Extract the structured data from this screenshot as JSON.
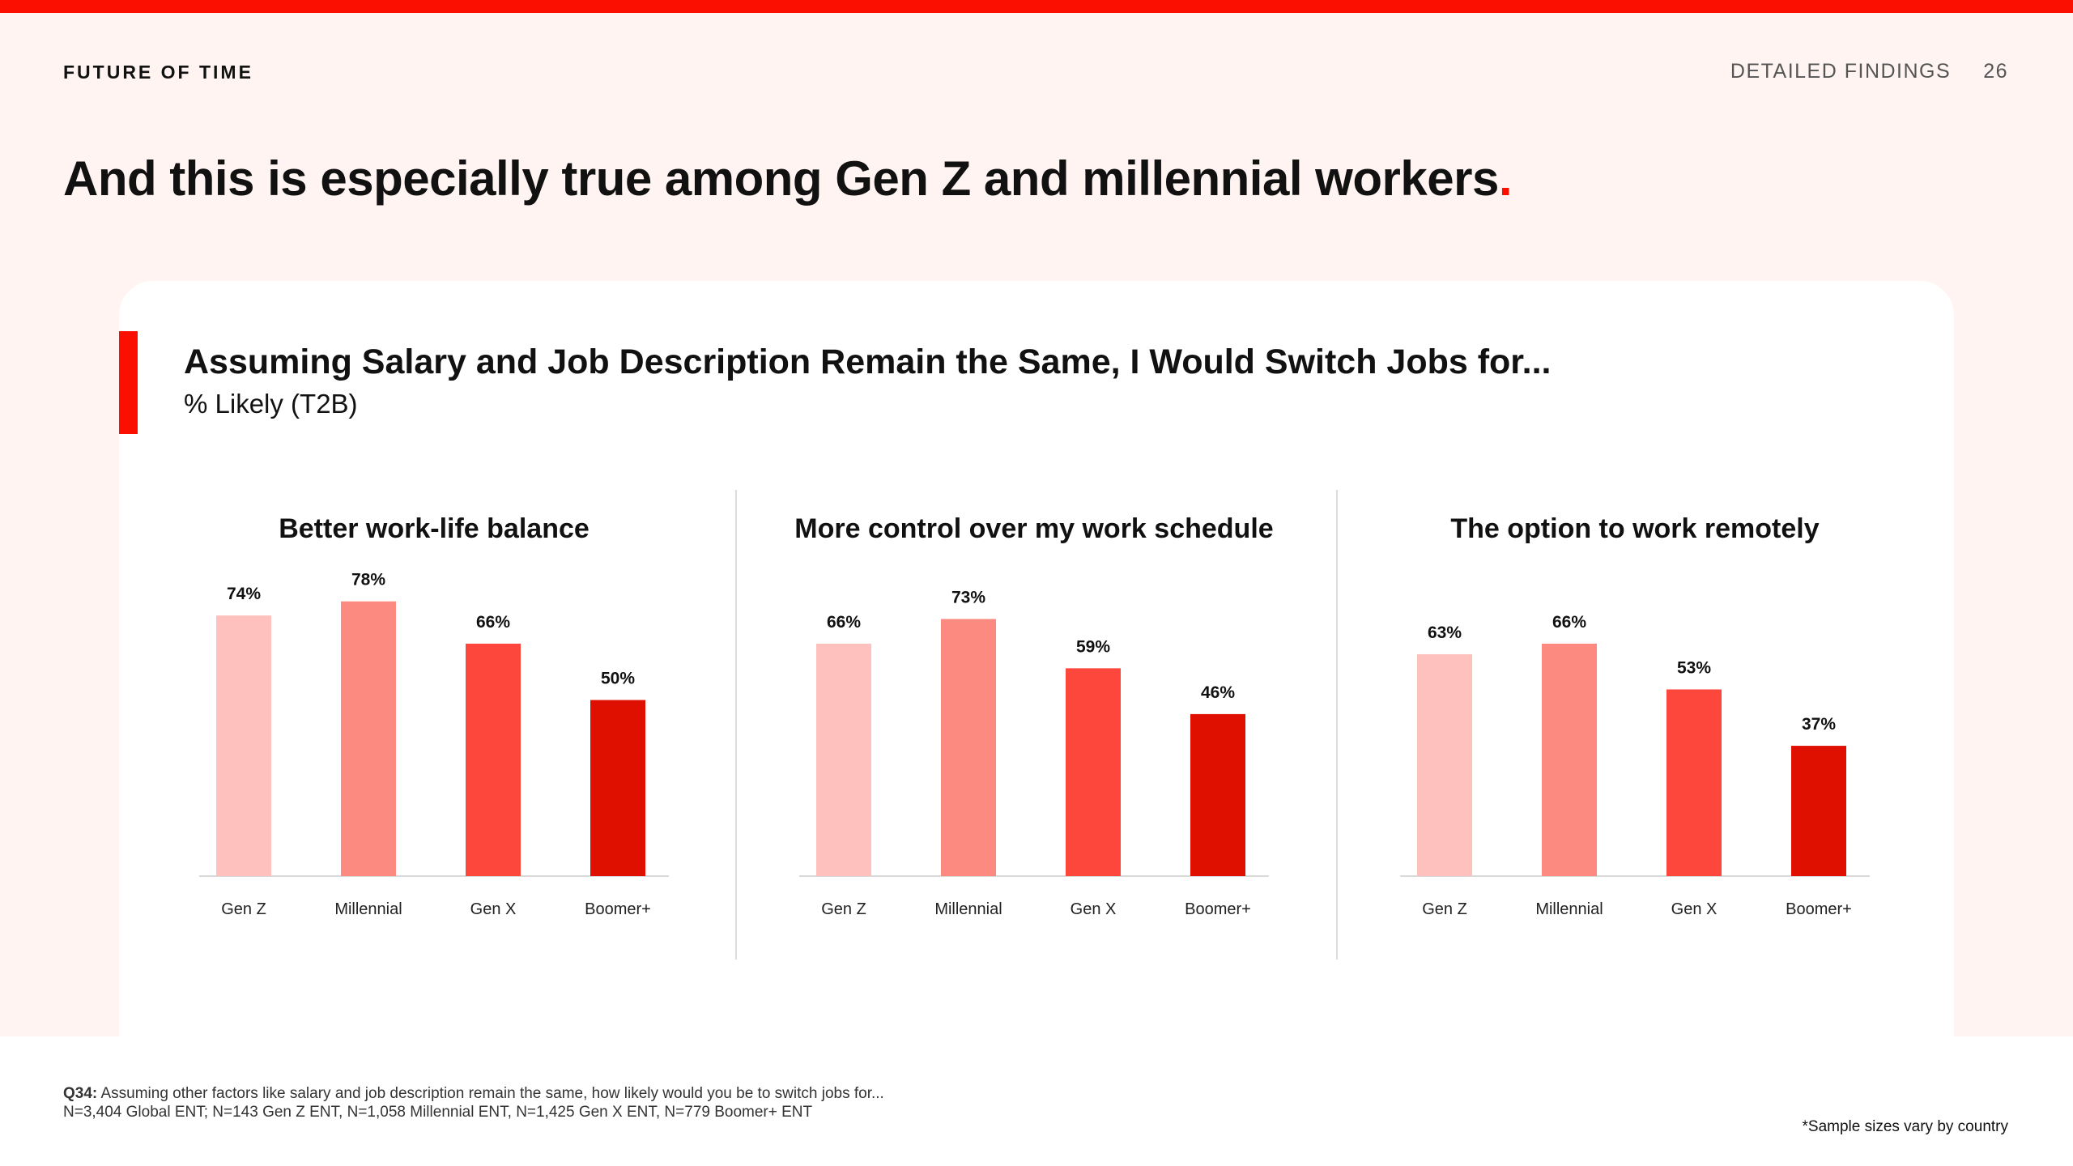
{
  "header": {
    "brand": "FUTURE OF TIME",
    "section": "DETAILED FINDINGS",
    "page_number": "26"
  },
  "headline": {
    "text": "And this is especially true among Gen Z and millennial workers",
    "dot": "."
  },
  "chart_title": "Assuming Salary and Job Description Remain the Same, I Would Switch Jobs for...",
  "chart_subtitle": "% Likely (T2B)",
  "colors": {
    "accent": "#fa0f00",
    "series": [
      "#fec1bd",
      "#fc8a80",
      "#fd463c",
      "#df1000"
    ]
  },
  "chart_data": [
    {
      "type": "bar",
      "title": "Better work-life balance",
      "categories": [
        "Gen Z",
        "Millennial",
        "Gen X",
        "Boomer+"
      ],
      "values": [
        74,
        78,
        66,
        50
      ],
      "value_labels": [
        "74%",
        "78%",
        "66%",
        "50%"
      ],
      "ylim": [
        0,
        100
      ],
      "xlabel": "",
      "ylabel": ""
    },
    {
      "type": "bar",
      "title": "More control over my work schedule",
      "categories": [
        "Gen Z",
        "Millennial",
        "Gen X",
        "Boomer+"
      ],
      "values": [
        66,
        73,
        59,
        46
      ],
      "value_labels": [
        "66%",
        "73%",
        "59%",
        "46%"
      ],
      "ylim": [
        0,
        100
      ],
      "xlabel": "",
      "ylabel": ""
    },
    {
      "type": "bar",
      "title": "The option to work remotely",
      "categories": [
        "Gen Z",
        "Millennial",
        "Gen X",
        "Boomer+"
      ],
      "values": [
        63,
        66,
        53,
        37
      ],
      "value_labels": [
        "63%",
        "66%",
        "53%",
        "37%"
      ],
      "ylim": [
        0,
        100
      ],
      "xlabel": "",
      "ylabel": ""
    }
  ],
  "footnote": {
    "question_label": "Q34:",
    "question_text": " Assuming other factors like salary and job description remain the same, how likely would you be to switch jobs for...",
    "sample_text": "N=3,404 Global ENT; N=143 Gen Z ENT, N=1,058 Millennial ENT, N=1,425 Gen X ENT, N=779 Boomer+ ENT"
  },
  "sample_note": "*Sample sizes vary by country"
}
